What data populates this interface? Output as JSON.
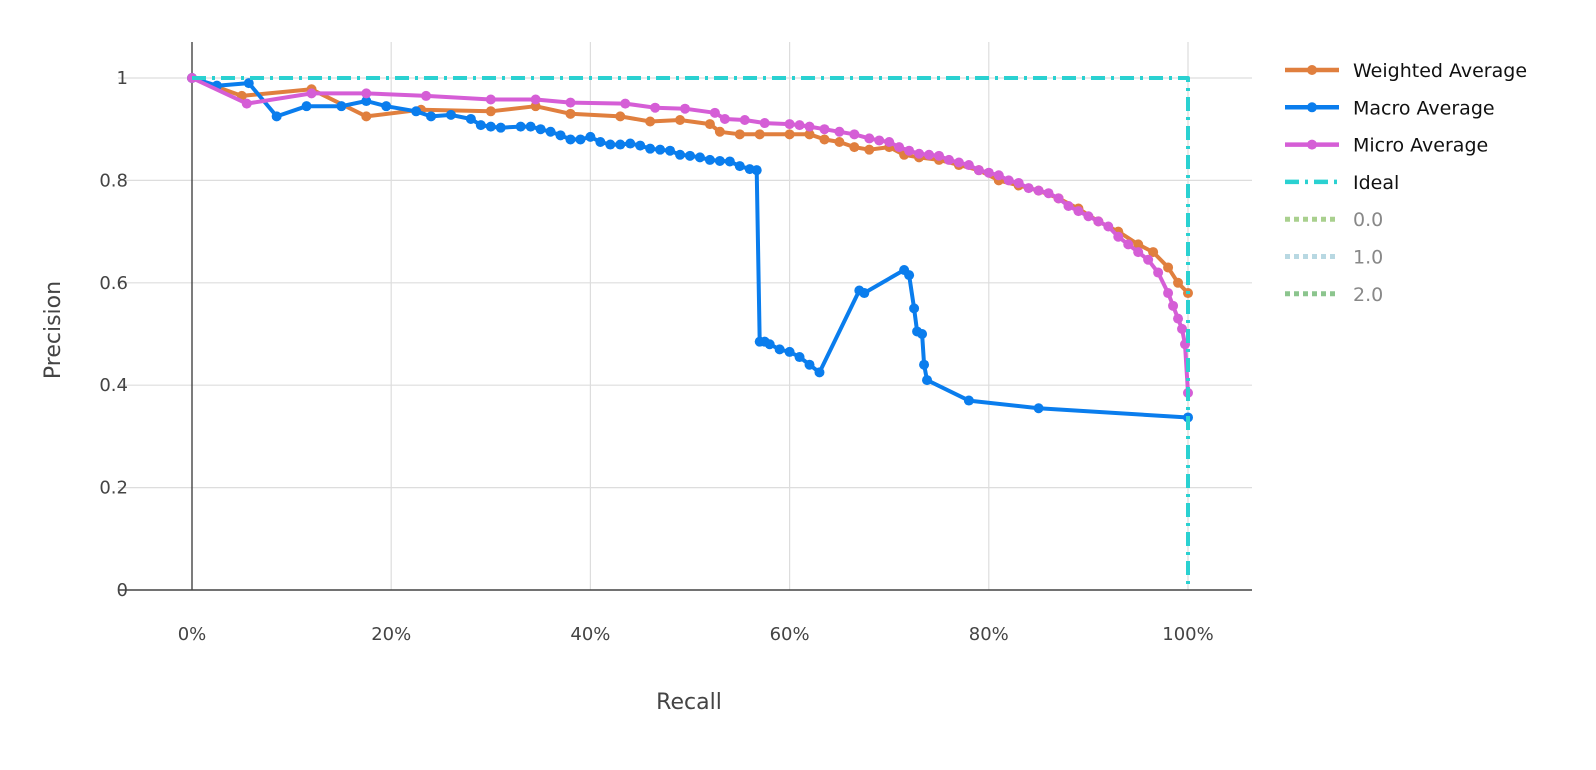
{
  "chart_data": {
    "type": "line",
    "xlabel": "Recall",
    "ylabel": "Precision",
    "xlim": [
      -0.065,
      1.065
    ],
    "ylim": [
      -0.07,
      1.07
    ],
    "x_ticks": [
      0,
      0.2,
      0.4,
      0.6,
      0.8,
      1.0
    ],
    "x_tick_labels": [
      "0%",
      "20%",
      "40%",
      "60%",
      "80%",
      "100%"
    ],
    "y_ticks": [
      0,
      0.2,
      0.4,
      0.6,
      0.8,
      1.0
    ],
    "y_tick_labels": [
      "0",
      "0.2",
      "0.4",
      "0.6",
      "0.8",
      "1"
    ],
    "grid": true,
    "legend_position": "right",
    "series": [
      {
        "name": "Weighted Average",
        "color": "#e07f3e",
        "style": "solid",
        "markers": true,
        "x": [
          0,
          0.05,
          0.12,
          0.175,
          0.23,
          0.3,
          0.345,
          0.38,
          0.43,
          0.46,
          0.49,
          0.52,
          0.53,
          0.55,
          0.57,
          0.6,
          0.62,
          0.635,
          0.65,
          0.665,
          0.68,
          0.7,
          0.715,
          0.73,
          0.75,
          0.77,
          0.79,
          0.81,
          0.83,
          0.85,
          0.87,
          0.89,
          0.91,
          0.93,
          0.95,
          0.965,
          0.98,
          0.99,
          1.0
        ],
        "y": [
          1.0,
          0.965,
          0.978,
          0.925,
          0.938,
          0.935,
          0.945,
          0.93,
          0.925,
          0.915,
          0.918,
          0.91,
          0.895,
          0.89,
          0.89,
          0.89,
          0.89,
          0.88,
          0.875,
          0.865,
          0.86,
          0.865,
          0.85,
          0.845,
          0.84,
          0.83,
          0.82,
          0.8,
          0.79,
          0.78,
          0.765,
          0.745,
          0.72,
          0.7,
          0.675,
          0.66,
          0.63,
          0.6,
          0.58
        ]
      },
      {
        "name": "Macro Average",
        "color": "#0a7ded",
        "style": "solid",
        "markers": true,
        "x": [
          0,
          0.025,
          0.057,
          0.085,
          0.115,
          0.15,
          0.175,
          0.195,
          0.225,
          0.24,
          0.26,
          0.28,
          0.29,
          0.3,
          0.31,
          0.33,
          0.34,
          0.35,
          0.36,
          0.37,
          0.38,
          0.39,
          0.4,
          0.41,
          0.42,
          0.43,
          0.44,
          0.45,
          0.46,
          0.47,
          0.48,
          0.49,
          0.5,
          0.51,
          0.52,
          0.53,
          0.54,
          0.55,
          0.56,
          0.567,
          0.57,
          0.575,
          0.58,
          0.59,
          0.6,
          0.61,
          0.62,
          0.63,
          0.67,
          0.675,
          0.715,
          0.72,
          0.725,
          0.728,
          0.733,
          0.735,
          0.738,
          0.78,
          0.85,
          1.0
        ],
        "y": [
          1.0,
          0.985,
          0.99,
          0.925,
          0.945,
          0.945,
          0.955,
          0.945,
          0.935,
          0.925,
          0.928,
          0.92,
          0.908,
          0.905,
          0.903,
          0.905,
          0.905,
          0.9,
          0.895,
          0.888,
          0.88,
          0.88,
          0.885,
          0.875,
          0.87,
          0.87,
          0.872,
          0.868,
          0.862,
          0.86,
          0.858,
          0.85,
          0.848,
          0.845,
          0.84,
          0.838,
          0.837,
          0.828,
          0.822,
          0.82,
          0.485,
          0.485,
          0.48,
          0.47,
          0.465,
          0.455,
          0.44,
          0.425,
          0.585,
          0.58,
          0.625,
          0.615,
          0.55,
          0.505,
          0.5,
          0.44,
          0.41,
          0.37,
          0.355,
          0.337
        ]
      },
      {
        "name": "Micro Average",
        "color": "#d55ed6",
        "style": "solid",
        "markers": true,
        "x": [
          0,
          0.055,
          0.12,
          0.175,
          0.235,
          0.3,
          0.345,
          0.38,
          0.435,
          0.465,
          0.495,
          0.525,
          0.535,
          0.555,
          0.575,
          0.6,
          0.61,
          0.62,
          0.635,
          0.65,
          0.665,
          0.68,
          0.69,
          0.7,
          0.71,
          0.72,
          0.73,
          0.74,
          0.75,
          0.76,
          0.77,
          0.78,
          0.79,
          0.8,
          0.81,
          0.82,
          0.83,
          0.84,
          0.85,
          0.86,
          0.87,
          0.88,
          0.89,
          0.9,
          0.91,
          0.92,
          0.93,
          0.94,
          0.95,
          0.96,
          0.97,
          0.98,
          0.985,
          0.99,
          0.994,
          0.997,
          1.0
        ],
        "y": [
          1.0,
          0.95,
          0.97,
          0.97,
          0.965,
          0.958,
          0.958,
          0.952,
          0.95,
          0.942,
          0.94,
          0.932,
          0.92,
          0.918,
          0.912,
          0.91,
          0.908,
          0.905,
          0.9,
          0.895,
          0.89,
          0.882,
          0.878,
          0.875,
          0.865,
          0.858,
          0.852,
          0.85,
          0.848,
          0.84,
          0.835,
          0.83,
          0.82,
          0.815,
          0.81,
          0.8,
          0.795,
          0.785,
          0.78,
          0.775,
          0.765,
          0.75,
          0.74,
          0.73,
          0.72,
          0.71,
          0.69,
          0.675,
          0.66,
          0.645,
          0.62,
          0.58,
          0.555,
          0.53,
          0.51,
          0.48,
          0.385
        ]
      },
      {
        "name": "Ideal",
        "color": "#2ad1d1",
        "style": "dashdot",
        "markers": false,
        "x": [
          0,
          1.0,
          1.0
        ],
        "y": [
          1.0,
          1.0,
          0.0
        ]
      },
      {
        "name": "0.0",
        "color": "#a9d08e",
        "style": "dot",
        "markers": false,
        "x": [],
        "y": []
      },
      {
        "name": "1.0",
        "color": "#b8d8e2",
        "style": "dot",
        "markers": false,
        "x": [],
        "y": []
      },
      {
        "name": "2.0",
        "color": "#8cc58e",
        "style": "dot",
        "markers": false,
        "x": [],
        "y": []
      }
    ]
  }
}
